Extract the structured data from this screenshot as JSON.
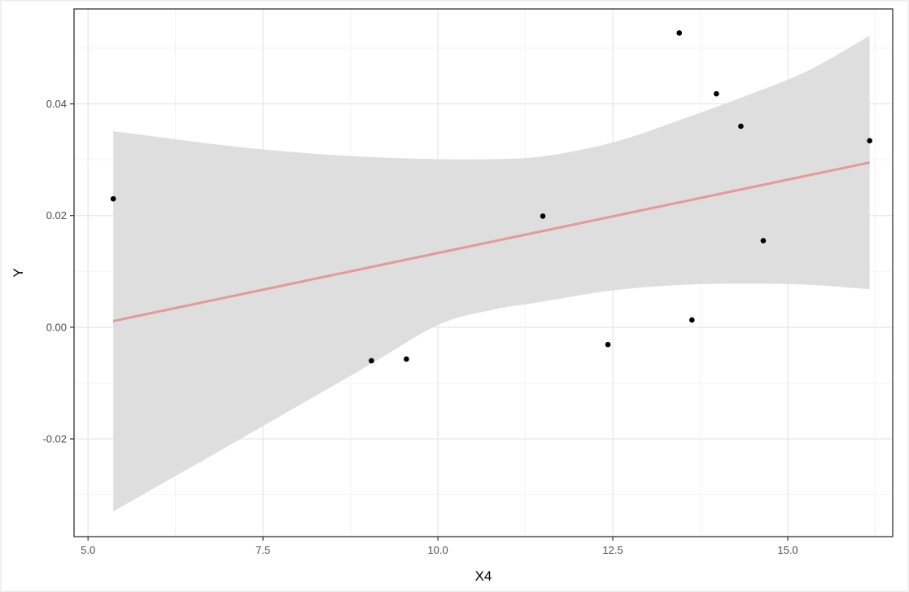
{
  "chart_data": {
    "type": "scatter",
    "title": "",
    "xlabel": "X4",
    "ylabel": "Y",
    "xlim": [
      4.8,
      16.5
    ],
    "ylim": [
      -0.0375,
      0.057
    ],
    "x_ticks": [
      {
        "value": 5.0,
        "label": "5.0"
      },
      {
        "value": 7.5,
        "label": "7.5"
      },
      {
        "value": 10.0,
        "label": "10.0"
      },
      {
        "value": 12.5,
        "label": "12.5"
      },
      {
        "value": 15.0,
        "label": "15.0"
      }
    ],
    "y_ticks": [
      {
        "value": -0.02,
        "label": "-0.02"
      },
      {
        "value": 0.0,
        "label": "0.00"
      },
      {
        "value": 0.02,
        "label": "0.02"
      },
      {
        "value": 0.04,
        "label": "0.04"
      }
    ],
    "grid": true,
    "points": [
      {
        "x": 5.36,
        "y": 0.023
      },
      {
        "x": 9.05,
        "y": -0.006
      },
      {
        "x": 9.55,
        "y": -0.0057
      },
      {
        "x": 11.5,
        "y": 0.0199
      },
      {
        "x": 12.43,
        "y": -0.0031
      },
      {
        "x": 13.45,
        "y": 0.0527
      },
      {
        "x": 13.63,
        "y": 0.0013
      },
      {
        "x": 13.98,
        "y": 0.0418
      },
      {
        "x": 14.33,
        "y": 0.036
      },
      {
        "x": 14.65,
        "y": 0.0155
      },
      {
        "x": 16.17,
        "y": 0.0334
      }
    ],
    "fit_line": {
      "x": [
        5.36,
        16.17
      ],
      "y": [
        0.0011,
        0.0295
      ]
    },
    "confidence_band": {
      "x": [
        5.36,
        7.0,
        8.0,
        9.0,
        10.0,
        10.77,
        11.5,
        12.5,
        13.5,
        14.5,
        15.3,
        16.17
      ],
      "upper": [
        0.0351,
        0.0325,
        0.0313,
        0.0305,
        0.0301,
        0.0301,
        0.0306,
        0.0331,
        0.0373,
        0.0419,
        0.046,
        0.0522
      ],
      "lower": [
        -0.033,
        -0.0213,
        -0.0141,
        -0.0069,
        0.0004,
        0.0031,
        0.0046,
        0.0066,
        0.0076,
        0.0078,
        0.0076,
        0.0068
      ]
    },
    "colors": {
      "points": "#000000",
      "fit_line": "#e39a98",
      "band": "#dedede",
      "grid_major": "#e6e6e6",
      "grid_minor": "#f3f3f3",
      "panel_border": "#333333"
    }
  }
}
